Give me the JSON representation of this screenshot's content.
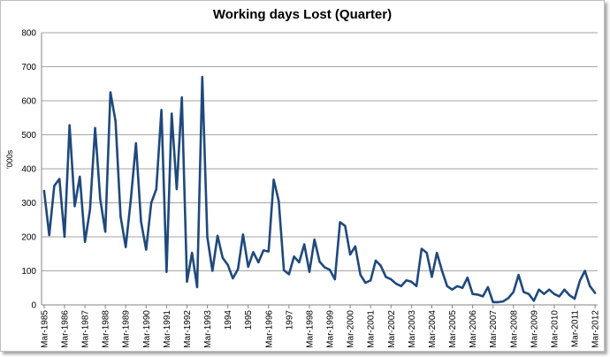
{
  "chart_data": {
    "type": "line",
    "title": "Working days Lost (Quarter)",
    "ylabel": "'000s",
    "xlabel": "",
    "ylim": [
      0,
      800
    ],
    "yticks": [
      0,
      100,
      200,
      300,
      400,
      500,
      600,
      700,
      800
    ],
    "grid": "horizontal",
    "legend": "none",
    "line_color": "#1f497d",
    "x_tick_labels": [
      "Mar-1985",
      "Mar-1986",
      "Mar-1987",
      "Mar-1988",
      "Mar-1989",
      "Mar-1990",
      "Mar-1991",
      "Mar-1992",
      "Mar-1993",
      "1994",
      "1995",
      "Mar-1996",
      "1997",
      "Mar-1998",
      "Mar-1999",
      "Mar-2000",
      "Mar-2001",
      "Mar-2002",
      "Mar-2003",
      "Mar-2004",
      "Mar-2005",
      "Mar-2006",
      "Mar-2007",
      "Mar-2008",
      "Mar-2009",
      "Mar-2010",
      "Mar-2011",
      "Mar-2012"
    ],
    "x_start": "Mar-1985",
    "x_frequency": "quarterly",
    "values": [
      335,
      205,
      350,
      370,
      200,
      528,
      290,
      377,
      185,
      280,
      520,
      310,
      215,
      625,
      540,
      260,
      170,
      310,
      475,
      245,
      162,
      300,
      340,
      573,
      97,
      562,
      340,
      610,
      68,
      153,
      52,
      670,
      200,
      100,
      203,
      138,
      118,
      78,
      105,
      207,
      112,
      155,
      125,
      160,
      157,
      368,
      305,
      102,
      90,
      142,
      125,
      178,
      97,
      192,
      127,
      110,
      103,
      75,
      243,
      232,
      148,
      172,
      88,
      65,
      72,
      130,
      115,
      82,
      75,
      62,
      55,
      72,
      68,
      55,
      165,
      153,
      82,
      153,
      100,
      55,
      45,
      55,
      50,
      80,
      32,
      30,
      25,
      52,
      8,
      8,
      10,
      20,
      38,
      88,
      38,
      32,
      12,
      45,
      32,
      45,
      32,
      25,
      45,
      28,
      18,
      70,
      100,
      55,
      35
    ]
  }
}
